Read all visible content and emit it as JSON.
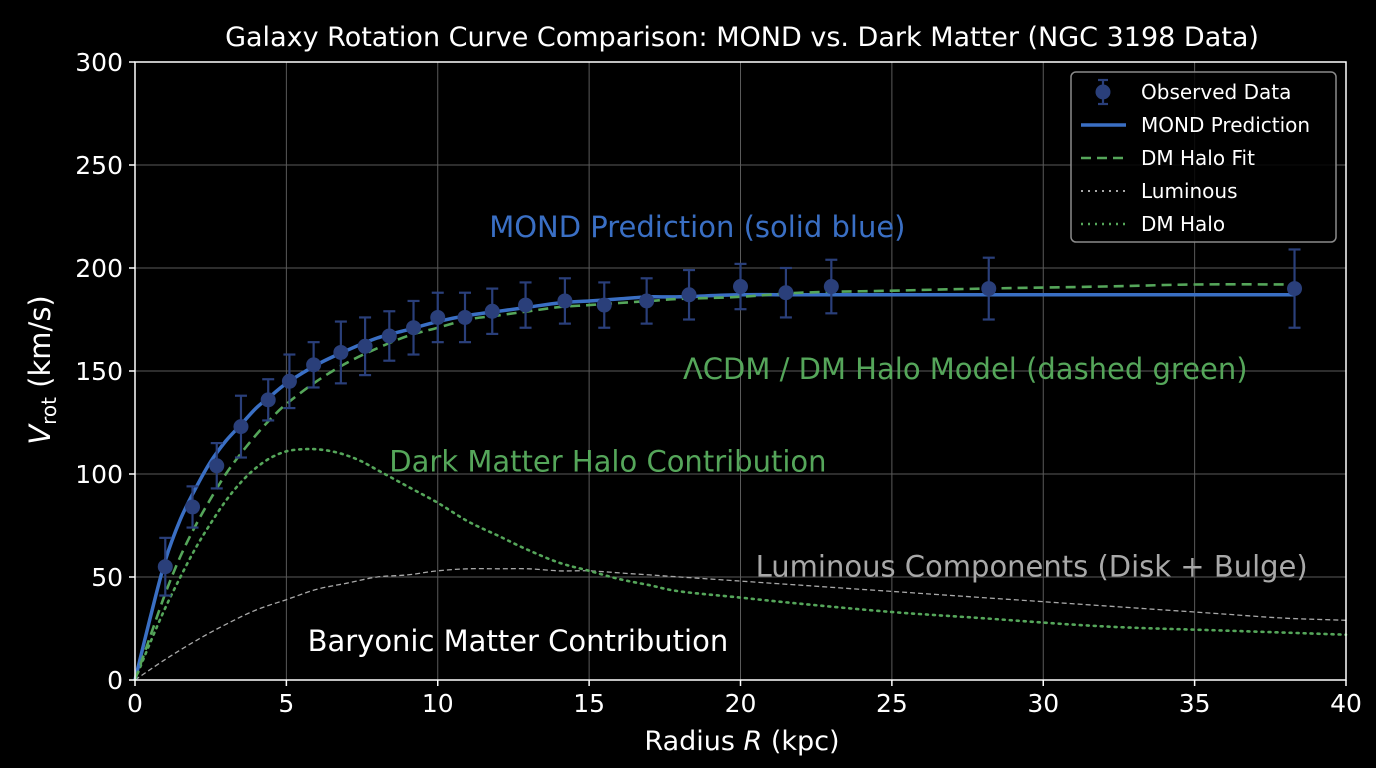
{
  "chart_data": {
    "type": "line",
    "title": "Galaxy Rotation Curve Comparison: MOND vs. Dark Matter (NGC 3198 Data)",
    "xlabel_prefix": "Radius ",
    "xlabel_var": "R",
    "xlabel_suffix": " (kpc)",
    "ylabel_var": "V",
    "ylabel_sub": "rot",
    "ylabel_suffix": " (km/s)",
    "xlim": [
      0,
      40
    ],
    "ylim": [
      0,
      300
    ],
    "xticks": [
      0,
      5,
      10,
      15,
      20,
      25,
      30,
      35,
      40
    ],
    "yticks": [
      0,
      50,
      100,
      150,
      200,
      250,
      300
    ],
    "grid": true,
    "legend_position": "top-right",
    "legend": [
      "Observed Data",
      "MOND Prediction",
      "DM Halo Fit",
      "Luminous",
      "DM Halo"
    ],
    "colors": {
      "observed": "#2a3f7a",
      "mond": "#3a6fc4",
      "dm_fit": "#55a65a",
      "luminous": "#a8a8a8",
      "dm_halo": "#55a65a",
      "axes": "#ffffff",
      "grid": "#5a5a5a",
      "baryonic_label": "#ffffff"
    },
    "observed": {
      "name": "Observed Data",
      "x": [
        1.0,
        1.9,
        2.7,
        3.5,
        4.4,
        5.1,
        5.9,
        6.8,
        7.6,
        8.4,
        9.2,
        10.0,
        10.9,
        11.8,
        12.9,
        14.2,
        15.5,
        16.9,
        18.3,
        20.0,
        21.5,
        23.0,
        28.2,
        38.3
      ],
      "y": [
        55,
        84,
        104,
        123,
        136,
        145,
        153,
        159,
        162,
        167,
        171,
        176,
        176,
        179,
        182,
        184,
        182,
        184,
        187,
        191,
        188,
        191,
        190,
        190
      ],
      "err": [
        14,
        10,
        11,
        15,
        10,
        13,
        11,
        15,
        14,
        12,
        13,
        12,
        12,
        11,
        11,
        11,
        11,
        11,
        12,
        11,
        12,
        13,
        15,
        19
      ]
    },
    "mond": {
      "name": "MOND Prediction",
      "x": [
        0,
        0.5,
        1,
        1.5,
        2,
        2.5,
        3,
        3.5,
        4,
        4.5,
        5,
        6,
        7,
        8,
        9,
        10,
        11,
        12,
        13,
        14,
        15,
        16,
        17,
        18,
        20,
        22,
        25,
        28,
        32,
        35,
        38.3
      ],
      "y": [
        0,
        30,
        58,
        78,
        93,
        106,
        116,
        124,
        132,
        138,
        144,
        153,
        160,
        166,
        170,
        174,
        177,
        179,
        181,
        183,
        184,
        185,
        186,
        186,
        187,
        187,
        187,
        187,
        187,
        187,
        187
      ]
    },
    "dm_fit": {
      "name": "DM Halo Fit",
      "x": [
        0,
        0.5,
        1,
        1.5,
        2,
        2.5,
        3,
        3.5,
        4,
        4.5,
        5,
        6,
        7,
        8,
        9,
        10,
        11,
        12,
        13,
        14,
        15,
        16,
        17,
        18,
        20,
        22,
        25,
        28,
        32,
        35,
        38.3
      ],
      "y": [
        0,
        21,
        42,
        60,
        75,
        88,
        100,
        110,
        119,
        127,
        134,
        145,
        154,
        161,
        167,
        171,
        175,
        177,
        179,
        181,
        182,
        183,
        184,
        185,
        186,
        188,
        189,
        190,
        191,
        192,
        192
      ]
    },
    "luminous": {
      "name": "Luminous",
      "x": [
        0,
        1,
        2,
        3,
        4,
        5,
        6,
        7,
        8,
        9,
        10,
        11,
        12,
        13,
        14,
        15,
        16,
        17,
        18,
        20,
        22,
        24,
        26,
        28,
        30,
        32,
        34,
        36,
        38,
        40
      ],
      "y": [
        0,
        10,
        19,
        27,
        34,
        39,
        44,
        47,
        50,
        51,
        53,
        54,
        54,
        54,
        53,
        53,
        52,
        51,
        50,
        48,
        46,
        44,
        42,
        40,
        38,
        36,
        34,
        32,
        30,
        29
      ]
    },
    "dm_halo": {
      "name": "DM Halo",
      "x": [
        0,
        0.5,
        1,
        1.5,
        2,
        2.5,
        3,
        3.5,
        4,
        4.5,
        5,
        5.5,
        6,
        6.5,
        7,
        7.5,
        8,
        9,
        10,
        11,
        12,
        13,
        14,
        15,
        16,
        17,
        18,
        20,
        22,
        25,
        28,
        32,
        36,
        40
      ],
      "y": [
        0,
        18,
        35,
        50,
        64,
        76,
        87,
        96,
        103,
        108,
        111,
        112,
        112,
        111,
        109,
        106,
        102,
        94,
        86,
        77,
        70,
        63,
        57,
        53,
        49,
        46,
        43,
        40,
        37,
        33,
        30,
        26,
        24,
        22
      ]
    },
    "annotations": [
      {
        "id": "mond",
        "text": "MOND Prediction (solid blue)",
        "x": 11.7,
        "y": 220,
        "color": "mond"
      },
      {
        "id": "lcdm",
        "text": "ΛCDM / DM Halo Model (dashed green)",
        "x": 18.1,
        "y": 151,
        "color": "dm_fit"
      },
      {
        "id": "dmhalo",
        "text": "Dark Matter Halo Contribution",
        "x": 8.4,
        "y": 106,
        "color": "dm_fit"
      },
      {
        "id": "luminous",
        "text": "Luminous Components (Disk + Bulge)",
        "x": 20.5,
        "y": 55,
        "color": "luminous"
      },
      {
        "id": "baryonic",
        "text": "Baryonic Matter Contribution",
        "x": 5.7,
        "y": 19,
        "color": "baryonic_label"
      }
    ]
  }
}
